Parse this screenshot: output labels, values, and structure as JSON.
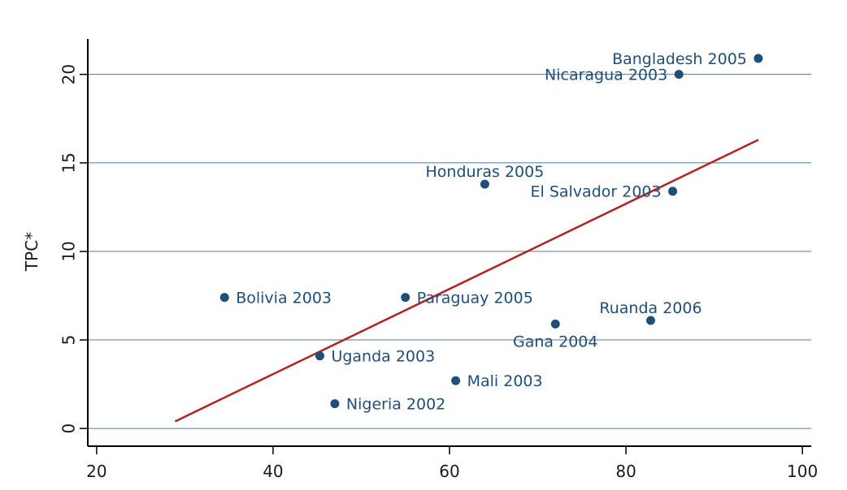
{
  "chart_data": {
    "type": "scatter",
    "ylabel": "TPC*",
    "xlabel": "",
    "xlim": [
      19,
      101
    ],
    "ylim": [
      -1,
      22
    ],
    "x_ticks": [
      20,
      40,
      60,
      80,
      100
    ],
    "y_ticks": [
      0,
      5,
      10,
      15,
      20
    ],
    "grid": "horizontal",
    "colors": {
      "point": "#1f4e79",
      "label": "#1f4e79",
      "fit_line": "#b22222",
      "grid": "#1f4e79",
      "axis": "#000000"
    },
    "points": [
      {
        "label": "Bangladesh 2005",
        "x": 95.0,
        "y": 20.9,
        "label_pos": "left"
      },
      {
        "label": "Nicaragua 2003",
        "x": 86.0,
        "y": 20.0,
        "label_pos": "left"
      },
      {
        "label": "Honduras 2005",
        "x": 64.0,
        "y": 13.8,
        "label_pos": "above"
      },
      {
        "label": "El Salvador 2003",
        "x": 85.3,
        "y": 13.4,
        "label_pos": "left"
      },
      {
        "label": "Bolivia 2003",
        "x": 34.5,
        "y": 7.4,
        "label_pos": "right"
      },
      {
        "label": "Paraguay 2005",
        "x": 55.0,
        "y": 7.4,
        "label_pos": "right"
      },
      {
        "label": "Ruanda 2006",
        "x": 82.8,
        "y": 6.1,
        "label_pos": "above"
      },
      {
        "label": "Gana 2004",
        "x": 72.0,
        "y": 5.9,
        "label_pos": "below"
      },
      {
        "label": "Uganda 2003",
        "x": 45.3,
        "y": 4.1,
        "label_pos": "right"
      },
      {
        "label": "Mali 2003",
        "x": 60.7,
        "y": 2.7,
        "label_pos": "right"
      },
      {
        "label": "Nigeria 2002",
        "x": 47.0,
        "y": 1.4,
        "label_pos": "right"
      }
    ],
    "fit_line": {
      "x": [
        28.9,
        95.0
      ],
      "y": [
        0.4,
        16.3
      ]
    }
  }
}
